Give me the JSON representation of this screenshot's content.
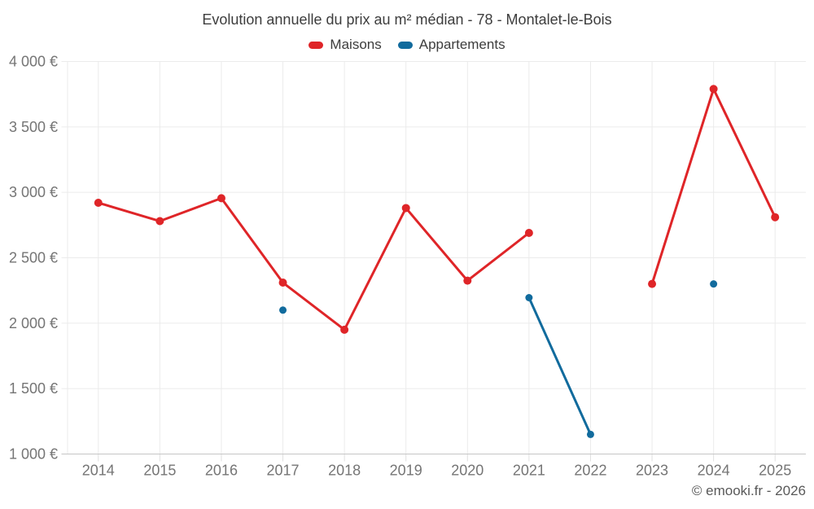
{
  "title": "Evolution annuelle du prix au m² médian - 78 - Montalet-le-Bois",
  "footer": {
    "text": "© emooki.fr - 2026"
  },
  "colors": {
    "maisons": "#df2528",
    "appartements": "#116b9d",
    "grid": "#ebebeb",
    "axis_line": "#c6c6c6",
    "axis_tick": "#e0e0e0",
    "axis_text": "#757575",
    "title_text": "#3d3d3d",
    "footer_text": "#595959",
    "background": "#ffffff"
  },
  "chart_data": {
    "type": "line",
    "title": "Evolution annuelle du prix au m² médian - 78 - Montalet-le-Bois",
    "x": [
      "2014",
      "2015",
      "2016",
      "2017",
      "2018",
      "2019",
      "2020",
      "2021",
      "2022",
      "2023",
      "2024",
      "2025"
    ],
    "series": [
      {
        "name": "Maisons",
        "color": "#df2528",
        "point_radius": 5,
        "line_width": 3,
        "values": [
          2920,
          2780,
          2955,
          2310,
          1950,
          2880,
          2325,
          2690,
          null,
          2300,
          3790,
          2810
        ]
      },
      {
        "name": "Appartements",
        "color": "#116b9d",
        "point_radius": 4.5,
        "line_width": 3,
        "values": [
          null,
          null,
          null,
          2100,
          null,
          null,
          null,
          2195,
          1150,
          null,
          2300,
          null
        ]
      }
    ],
    "ylim": [
      1000,
      4000
    ],
    "y_ticks": [
      {
        "value": 4000,
        "label": "4 000 €"
      },
      {
        "value": 3500,
        "label": "3 500 €"
      },
      {
        "value": 3000,
        "label": "3 000 €"
      },
      {
        "value": 2500,
        "label": "2 500 €"
      },
      {
        "value": 2000,
        "label": "2 000 €"
      },
      {
        "value": 1500,
        "label": "1 500 €"
      },
      {
        "value": 1000,
        "label": "1 000 €"
      }
    ],
    "grid": true,
    "legend_position": "top",
    "xlabel": "",
    "ylabel": ""
  }
}
